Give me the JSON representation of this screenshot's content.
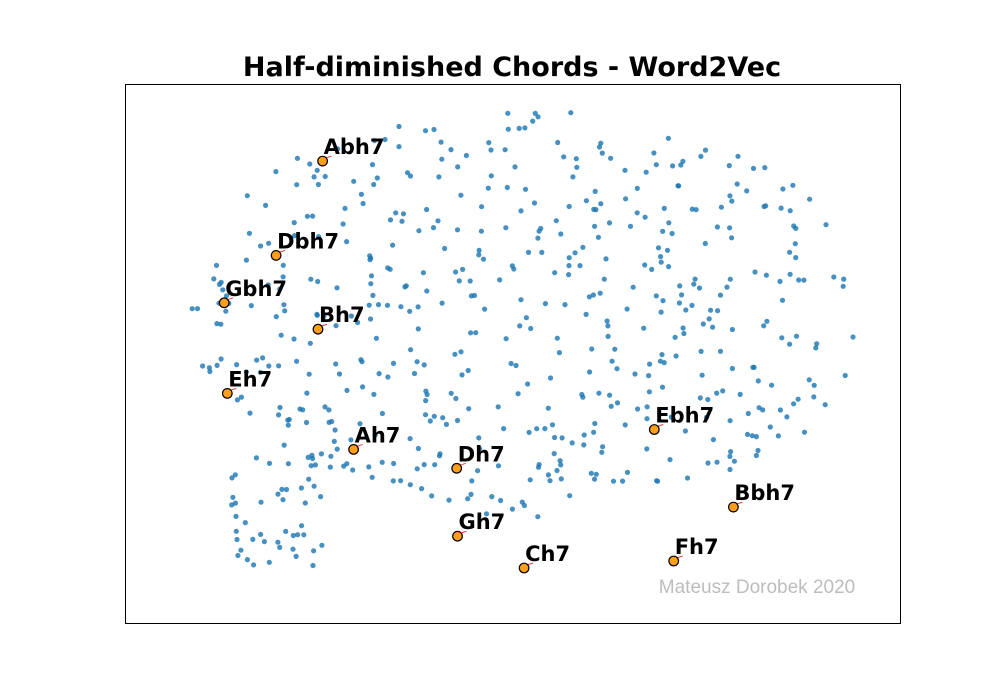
{
  "chart_data": {
    "type": "scatter",
    "title": "Half-diminished Chords - Word2Vec",
    "xlabel": "",
    "ylabel": "",
    "xlim": [
      0,
      100
    ],
    "ylim": [
      0,
      100
    ],
    "grid": false,
    "watermark": "Mateusz Dorobek 2020",
    "background_color": "#1f77b4",
    "highlight_color": "#ff9f1c",
    "background_point_count": 560,
    "highlighted": [
      {
        "label": "Abh7",
        "x": 25.5,
        "y": 85.7
      },
      {
        "label": "Dbh7",
        "x": 19.5,
        "y": 68.2
      },
      {
        "label": "Gbh7",
        "x": 12.8,
        "y": 59.4
      },
      {
        "label": "Bh7",
        "x": 24.9,
        "y": 54.5
      },
      {
        "label": "Eh7",
        "x": 13.2,
        "y": 42.6
      },
      {
        "label": "Ah7",
        "x": 29.5,
        "y": 32.2
      },
      {
        "label": "Dh7",
        "x": 42.8,
        "y": 28.7
      },
      {
        "label": "Gh7",
        "x": 42.9,
        "y": 16.1
      },
      {
        "label": "Ch7",
        "x": 51.5,
        "y": 10.2
      },
      {
        "label": "Ebh7",
        "x": 68.3,
        "y": 35.9
      },
      {
        "label": "Bbh7",
        "x": 78.5,
        "y": 21.5
      },
      {
        "label": "Fh7",
        "x": 70.8,
        "y": 11.5
      }
    ]
  }
}
